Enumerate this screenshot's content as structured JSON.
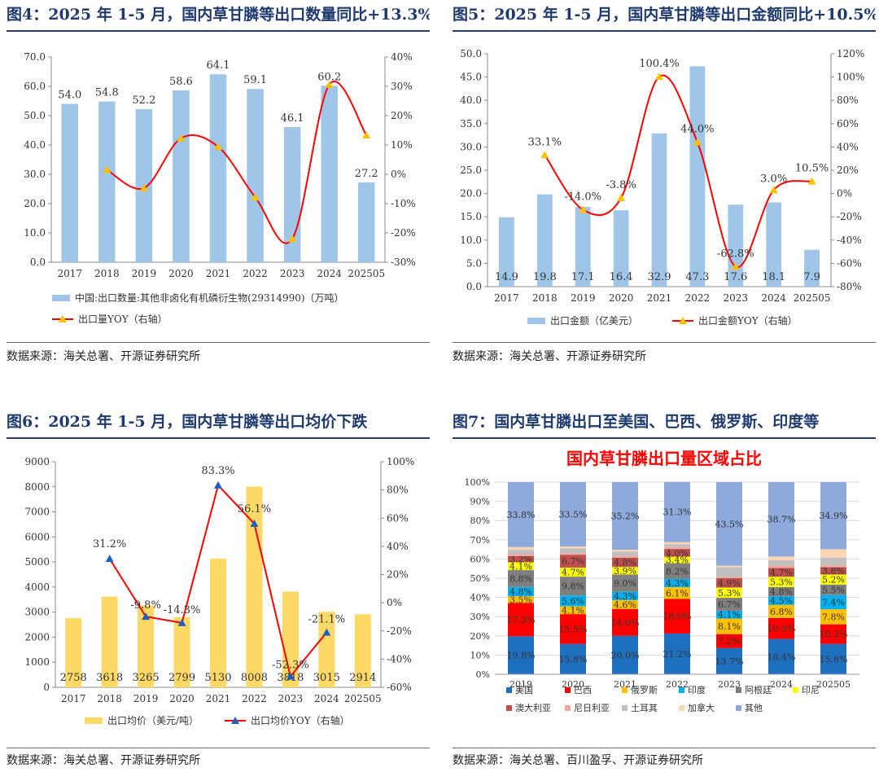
{
  "panels": {
    "fig4": {
      "title": "图4：2025 年 1-5 月，国内草甘膦等出口数量同比+13.3%",
      "source": "数据来源：海关总署、开源证券研究所"
    },
    "fig5": {
      "title": "图5：2025 年 1-5 月，国内草甘膦等出口金额同比+10.5%",
      "source": "数据来源：海关总署、开源证券研究所"
    },
    "fig6": {
      "title": "图6：2025 年 1-5 月，国内草甘膦等出口均价下跌",
      "source": "数据来源：海关总署、开源证券研究所"
    },
    "fig7": {
      "title": "图7：国内草甘膦出口至美国、巴西、俄罗斯、印度等",
      "source": "数据来源：海关总署、百川盈孚、开源证券研究所"
    }
  },
  "chart_data": [
    {
      "id": "fig4",
      "type": "bar+line",
      "categories": [
        "2017",
        "2018",
        "2019",
        "2020",
        "2021",
        "2022",
        "2023",
        "2024",
        "202505"
      ],
      "bar": {
        "name": "中国:出口数量:其他非卤化有机磷衍生物(29314990)（万吨）",
        "values": [
          54.0,
          54.8,
          52.2,
          58.6,
          64.1,
          59.1,
          46.1,
          60.2,
          27.2
        ],
        "labels": [
          "54.0",
          "54.8",
          "52.2",
          "58.6",
          "64.1",
          "59.1",
          "46.1",
          "60.2",
          "27.2"
        ],
        "color": "#9fc5e8"
      },
      "line": {
        "name": "出口量YOY（右轴）",
        "values": [
          null,
          1.5,
          -4.7,
          12.3,
          9.4,
          -7.8,
          -22.0,
          30.6,
          13.3
        ],
        "color": "#ff0000"
      },
      "ylim": [
        0,
        70
      ],
      "yticks": [
        "0.0",
        "10.0",
        "20.0",
        "30.0",
        "40.0",
        "50.0",
        "60.0",
        "70.0"
      ],
      "y2lim": [
        -30,
        40
      ],
      "y2ticks": [
        "-30%",
        "-20%",
        "-10%",
        "0%",
        "10%",
        "20%",
        "30%",
        "40%"
      ]
    },
    {
      "id": "fig5",
      "type": "bar+line",
      "categories": [
        "2017",
        "2018",
        "2019",
        "2020",
        "2021",
        "2022",
        "2023",
        "2024",
        "202505"
      ],
      "bar": {
        "name": "出口金额（亿美元）",
        "values": [
          14.9,
          19.8,
          17.1,
          16.4,
          32.9,
          47.3,
          17.6,
          18.1,
          7.9
        ],
        "labels": [
          "14.9",
          "19.8",
          "17.1",
          "16.4",
          "32.9",
          "47.3",
          "17.6",
          "18.1",
          "7.9"
        ],
        "color": "#9fc5e8"
      },
      "line": {
        "name": "出口金额YOY（右轴）",
        "values": [
          null,
          33.1,
          -14.0,
          -3.8,
          100.4,
          44.0,
          -62.8,
          3.0,
          10.5
        ],
        "labels": [
          "",
          "33.1%",
          "-14.0%",
          "-3.8%",
          "100.4%",
          "44.0%",
          "-62.8%",
          "3.0%",
          "10.5%"
        ],
        "color": "#ff0000"
      },
      "ylim": [
        0,
        50
      ],
      "yticks": [
        "0.0",
        "5.0",
        "10.0",
        "15.0",
        "20.0",
        "25.0",
        "30.0",
        "35.0",
        "40.0",
        "45.0",
        "50.0"
      ],
      "y2lim": [
        -80,
        120
      ],
      "y2ticks": [
        "-80%",
        "-60%",
        "-40%",
        "-20%",
        "0%",
        "20%",
        "40%",
        "60%",
        "80%",
        "100%",
        "120%"
      ]
    },
    {
      "id": "fig6",
      "type": "bar+line",
      "categories": [
        "2017",
        "2018",
        "2019",
        "2020",
        "2021",
        "2022",
        "2023",
        "2024",
        "202505"
      ],
      "bar": {
        "name": "出口均价（美元/吨）",
        "values": [
          2758,
          3618,
          3265,
          2799,
          5130,
          8008,
          3818,
          3015,
          2914
        ],
        "labels": [
          "2758",
          "3618",
          "3265",
          "2799",
          "5130",
          "8008",
          "3818",
          "3015",
          "2914"
        ],
        "color": "#ffd966"
      },
      "line": {
        "name": "出口均价YOY（右轴）",
        "values": [
          null,
          31.2,
          -9.8,
          -14.3,
          83.3,
          56.1,
          -52.3,
          -21.1,
          null
        ],
        "labels": [
          "",
          "31.2%",
          "-9.8%",
          "-14.3%",
          "83.3%",
          "56.1%",
          "-52.3%",
          "-21.1%",
          ""
        ],
        "color": "#ff0000"
      },
      "ylim": [
        0,
        9000
      ],
      "yticks": [
        "0",
        "1000",
        "2000",
        "3000",
        "4000",
        "5000",
        "6000",
        "7000",
        "8000",
        "9000"
      ],
      "y2lim": [
        -60,
        100
      ],
      "y2ticks": [
        "-60%",
        "-40%",
        "-20%",
        "0%",
        "20%",
        "40%",
        "60%",
        "80%",
        "100%"
      ]
    },
    {
      "id": "fig7",
      "type": "stacked-bar-100",
      "title": "国内草甘膦出口量区域占比",
      "categories": [
        "2019",
        "2020",
        "2021",
        "2022",
        "2023",
        "2024",
        "202505"
      ],
      "yticks": [
        "0%",
        "10%",
        "20%",
        "30%",
        "40%",
        "50%",
        "60%",
        "70%",
        "80%",
        "90%",
        "100%"
      ],
      "series": [
        {
          "name": "美国",
          "color": "#1f6fbf",
          "values": [
            19.8,
            15.8,
            20.0,
            21.2,
            13.7,
            18.4,
            15.8
          ]
        },
        {
          "name": "巴西",
          "color": "#ff0000",
          "values": [
            17.3,
            15.5,
            14.0,
            18.0,
            7.2,
            10.9,
            10.2
          ]
        },
        {
          "name": "俄罗斯",
          "color": "#ffc000",
          "values": [
            3.5,
            4.1,
            4.6,
            6.1,
            8.1,
            6.8,
            7.8
          ]
        },
        {
          "name": "印度",
          "color": "#00b0f0",
          "values": [
            4.8,
            5.6,
            4.3,
            4.3,
            4.1,
            4.5,
            7.4
          ]
        },
        {
          "name": "阿根廷",
          "color": "#7f7f7f",
          "values": [
            8.8,
            9.8,
            9.0,
            8.2,
            6.7,
            4.8,
            5.5
          ]
        },
        {
          "name": "印尼",
          "color": "#ffff00",
          "values": [
            4.1,
            4.7,
            3.9,
            3.4,
            5.3,
            5.3,
            5.2
          ]
        },
        {
          "name": "澳大利亚",
          "color": "#c0504d",
          "values": [
            3.2,
            6.7,
            4.8,
            4.0,
            4.9,
            4.7,
            3.8
          ]
        },
        {
          "name": "尼日利亚",
          "color": "#f4a6a0",
          "values": [
            1.0,
            0.8,
            1.0,
            1.0,
            0.6,
            1.2,
            1.0
          ]
        },
        {
          "name": "土耳其",
          "color": "#bfbfbf",
          "values": [
            2.3,
            2.5,
            2.2,
            1.5,
            5.1,
            2.7,
            4.0
          ]
        },
        {
          "name": "加拿大",
          "color": "#fcd5b4",
          "values": [
            1.4,
            1.0,
            1.0,
            1.1,
            0.8,
            2.0,
            4.4
          ]
        },
        {
          "name": "其他",
          "color": "#8ea9db",
          "values": [
            33.8,
            33.5,
            35.2,
            31.3,
            43.5,
            38.7,
            34.9
          ]
        }
      ],
      "labels": {
        "美国": [
          "19.8%",
          "15.8%",
          "20.0%",
          "21.2%",
          "13.7%",
          "18.4%",
          "15.8%"
        ],
        "巴西": [
          "17.3%",
          "15.5%",
          "14.0%",
          "18.0%",
          "7.2%",
          "10.9%",
          "10.2%"
        ],
        "俄罗斯": [
          "3.5%",
          "4.1%",
          "4.6%",
          "6.1%",
          "8.1%",
          "6.8%",
          "7.8%"
        ],
        "印度": [
          "4.8%",
          "5.6%",
          "4.3%",
          "4.3%",
          "4.1%",
          "4.5%",
          "7.4%"
        ],
        "阿根廷": [
          "8.8%",
          "9.8%",
          "9.0%",
          "8.2%",
          "6.7%",
          "4.8%",
          "5.5%"
        ],
        "印尼": [
          "4.1%",
          "4.7%",
          "3.9%",
          "3.4%",
          "5.3%",
          "5.3%",
          "5.2%"
        ],
        "澳大利亚": [
          "3.2%",
          "6.7%",
          "4.8%",
          "4.0%",
          "4.9%",
          "4.7%",
          "3.8%"
        ],
        "其他": [
          "33.8%",
          "33.5%",
          "35.2%",
          "31.3%",
          "43.5%",
          "38.7%",
          "34.9%"
        ]
      },
      "label_colors": {
        "美国": "#1f6fbf",
        "巴西": "#ff0000",
        "俄罗斯": "#ffc000",
        "印度": "#00b0f0",
        "阿根廷": "#7f7f7f",
        "印尼": "#ffff00",
        "澳大利亚": "#c0504d",
        "其他": "#8ea9db"
      }
    }
  ]
}
